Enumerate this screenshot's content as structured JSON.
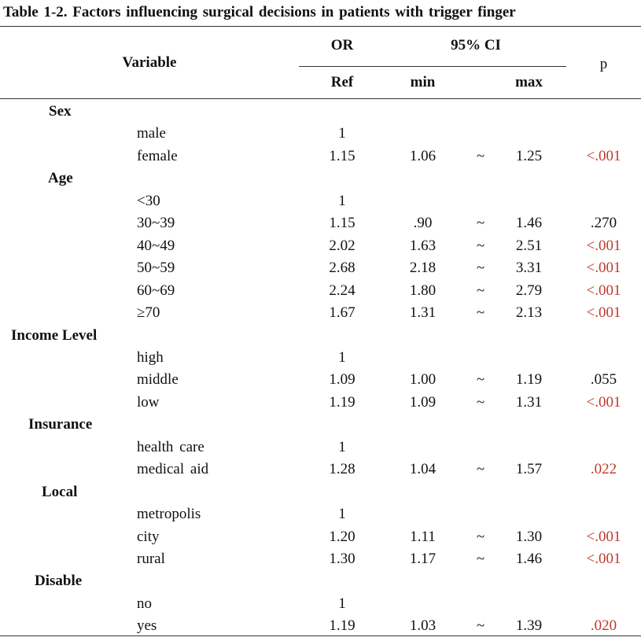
{
  "caption": "Table 1-2. Factors influencing surgical decisions in patients with trigger finger",
  "header": {
    "variable": "Variable",
    "or": "OR",
    "ci": "95% CI",
    "p": "p",
    "ref": "Ref",
    "min": "min",
    "max": "max"
  },
  "sections": [
    {
      "label": "Sex",
      "rows": [
        {
          "name": "male",
          "or": "1",
          "min": "",
          "tilde": "",
          "max": "",
          "p": "",
          "sig": false
        },
        {
          "name": "female",
          "or": "1.15",
          "min": "1.06",
          "tilde": "~",
          "max": "1.25",
          "p": "<.001",
          "sig": true
        }
      ]
    },
    {
      "label": "Age",
      "rows": [
        {
          "name": "<30",
          "or": "1",
          "min": "",
          "tilde": "",
          "max": "",
          "p": "",
          "sig": false
        },
        {
          "name": "30~39",
          "or": "1.15",
          "min": ".90",
          "tilde": "~",
          "max": "1.46",
          "p": ".270",
          "sig": false
        },
        {
          "name": "40~49",
          "or": "2.02",
          "min": "1.63",
          "tilde": "~",
          "max": "2.51",
          "p": "<.001",
          "sig": true
        },
        {
          "name": "50~59",
          "or": "2.68",
          "min": "2.18",
          "tilde": "~",
          "max": "3.31",
          "p": "<.001",
          "sig": true
        },
        {
          "name": "60~69",
          "or": "2.24",
          "min": "1.80",
          "tilde": "~",
          "max": "2.79",
          "p": "<.001",
          "sig": true
        },
        {
          "name": "≥70",
          "or": "1.67",
          "min": "1.31",
          "tilde": "~",
          "max": "2.13",
          "p": "<.001",
          "sig": true
        }
      ]
    },
    {
      "label": "Income Level",
      "rows": [
        {
          "name": "high",
          "or": "1",
          "min": "",
          "tilde": "",
          "max": "",
          "p": "",
          "sig": false
        },
        {
          "name": "middle",
          "or": "1.09",
          "min": "1.00",
          "tilde": "~",
          "max": "1.19",
          "p": ".055",
          "sig": false
        },
        {
          "name": "low",
          "or": "1.19",
          "min": "1.09",
          "tilde": "~",
          "max": "1.31",
          "p": "<.001",
          "sig": true
        }
      ]
    },
    {
      "label": "Insurance",
      "rows": [
        {
          "name": "health care",
          "or": "1",
          "min": "",
          "tilde": "",
          "max": "",
          "p": "",
          "sig": false
        },
        {
          "name": "medical aid",
          "or": "1.28",
          "min": "1.04",
          "tilde": "~",
          "max": "1.57",
          "p": ".022",
          "sig": true
        }
      ]
    },
    {
      "label": "Local",
      "rows": [
        {
          "name": "metropolis",
          "or": "1",
          "min": "",
          "tilde": "",
          "max": "",
          "p": "",
          "sig": false
        },
        {
          "name": "city",
          "or": "1.20",
          "min": "1.11",
          "tilde": "~",
          "max": "1.30",
          "p": "<.001",
          "sig": true
        },
        {
          "name": "rural",
          "or": "1.30",
          "min": "1.17",
          "tilde": "~",
          "max": "1.46",
          "p": "<.001",
          "sig": true
        }
      ]
    },
    {
      "label": "Disable",
      "rows": [
        {
          "name": "no",
          "or": "1",
          "min": "",
          "tilde": "",
          "max": "",
          "p": "",
          "sig": false
        },
        {
          "name": "yes",
          "or": "1.19",
          "min": "1.03",
          "tilde": "~",
          "max": "1.39",
          "p": ".020",
          "sig": true
        }
      ]
    }
  ],
  "colors": {
    "text": "#111111",
    "significant": "#c0392b"
  }
}
